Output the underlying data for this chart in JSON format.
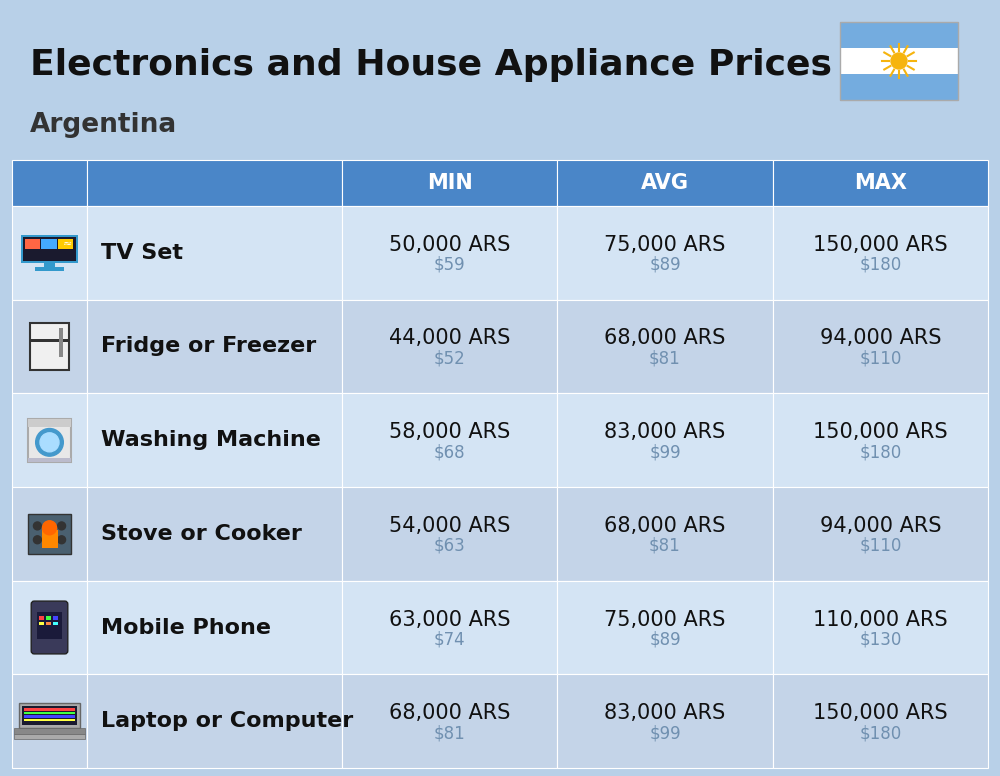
{
  "title": "Electronics and House Appliance Prices",
  "subtitle": "Argentina",
  "bg_color": "#b8d0e8",
  "header_color": "#4a86c8",
  "row_color_1": "#d4e4f4",
  "row_color_2": "#c4d4e8",
  "header_text_color": "#ffffff",
  "item_text_color": "#111111",
  "usd_text_color": "#7090b0",
  "col_headers": [
    "MIN",
    "AVG",
    "MAX"
  ],
  "items": [
    {
      "name": "TV Set",
      "min_ars": "50,000 ARS",
      "min_usd": "$59",
      "avg_ars": "75,000 ARS",
      "avg_usd": "$89",
      "max_ars": "150,000 ARS",
      "max_usd": "$180"
    },
    {
      "name": "Fridge or Freezer",
      "min_ars": "44,000 ARS",
      "min_usd": "$52",
      "avg_ars": "68,000 ARS",
      "avg_usd": "$81",
      "max_ars": "94,000 ARS",
      "max_usd": "$110"
    },
    {
      "name": "Washing Machine",
      "min_ars": "58,000 ARS",
      "min_usd": "$68",
      "avg_ars": "83,000 ARS",
      "avg_usd": "$99",
      "max_ars": "150,000 ARS",
      "max_usd": "$180"
    },
    {
      "name": "Stove or Cooker",
      "min_ars": "54,000 ARS",
      "min_usd": "$63",
      "avg_ars": "68,000 ARS",
      "avg_usd": "$81",
      "max_ars": "94,000 ARS",
      "max_usd": "$110"
    },
    {
      "name": "Mobile Phone",
      "min_ars": "63,000 ARS",
      "min_usd": "$74",
      "avg_ars": "75,000 ARS",
      "avg_usd": "$89",
      "max_ars": "110,000 ARS",
      "max_usd": "$130"
    },
    {
      "name": "Laptop or Computer",
      "min_ars": "68,000 ARS",
      "min_usd": "$81",
      "avg_ars": "83,000 ARS",
      "avg_usd": "$99",
      "max_ars": "150,000 ARS",
      "max_usd": "$180"
    }
  ],
  "flag_blue": "#74acdf",
  "flag_white": "#ffffff",
  "sun_color": "#f6b40e",
  "title_fontsize": 26,
  "subtitle_fontsize": 19,
  "header_fontsize": 15,
  "item_name_fontsize": 16,
  "value_fontsize": 15,
  "usd_fontsize": 12
}
